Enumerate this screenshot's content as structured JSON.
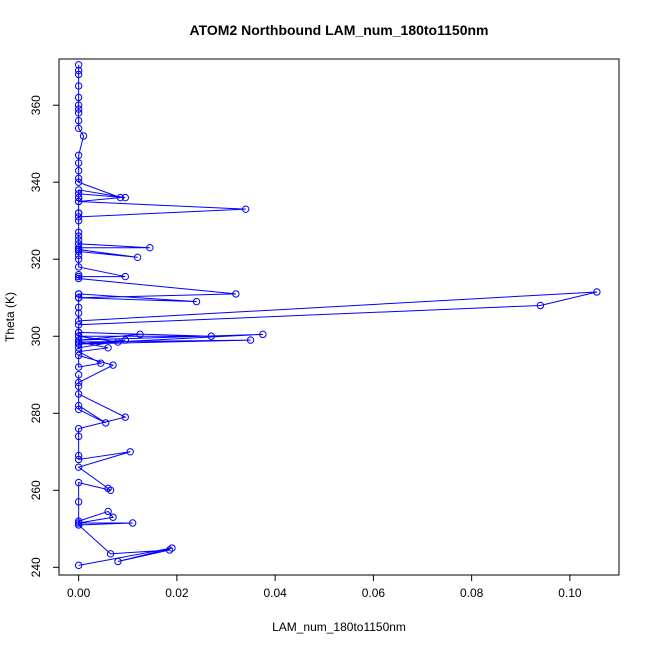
{
  "chart_data": {
    "type": "line",
    "title": "ATOM2 Northbound LAM_num_180to1150nm",
    "xlabel": "LAM_num_180to1150nm",
    "ylabel": "Theta (K)",
    "xlim": [
      -0.004,
      0.11
    ],
    "ylim": [
      238,
      372
    ],
    "xticks": [
      0.0,
      0.02,
      0.04,
      0.06,
      0.08,
      0.1
    ],
    "xtick_labels": [
      "0.00",
      "0.02",
      "0.04",
      "0.06",
      "0.08",
      "0.10"
    ],
    "yticks": [
      240,
      260,
      280,
      300,
      320,
      340,
      360
    ],
    "ytick_labels": [
      "240",
      "260",
      "280",
      "300",
      "320",
      "340",
      "360"
    ],
    "grid": false,
    "legend": "none",
    "series_color": "#0000ff",
    "marker": "open-circle",
    "series": [
      {
        "x": [
          0.0,
          0.019,
          0.008,
          0.0185,
          0.0065,
          0.0,
          0.011,
          0.0,
          0.007,
          0.006,
          0.0,
          0.0,
          0.0,
          0.0,
          0.0065,
          0.006,
          0.0,
          0.0105,
          0.0,
          0.0,
          0.0,
          0.0,
          0.0095,
          0.0,
          0.0,
          0.0055,
          0.0,
          0.0,
          0.0,
          0.0,
          0.007,
          0.0,
          0.0,
          0.0045,
          0.0,
          0.006,
          0.0,
          0.035,
          0.0,
          0.008,
          0.0,
          0.027,
          0.0,
          0.0125,
          0.0,
          0.0375,
          0.0,
          0.0095,
          0.0,
          0.0,
          0.0,
          0.0,
          0.094,
          0.1055,
          0.0,
          0.0,
          0.0,
          0.0,
          0.024,
          0.0,
          0.0,
          0.0,
          0.0,
          0.032,
          0.0,
          0.0,
          0.0,
          0.0095,
          0.0,
          0.0,
          0.0,
          0.012,
          0.0,
          0.0,
          0.0,
          0.0,
          0.0,
          0.0145,
          0.0,
          0.0,
          0.0,
          0.0,
          0.0,
          0.0,
          0.034,
          0.0,
          0.0,
          0.0,
          0.0,
          0.0095,
          0.0,
          0.0,
          0.0,
          0.0085,
          0.0,
          0.0,
          0.0,
          0.0,
          0.0,
          0.001,
          0.0,
          0.0,
          0.0,
          0.0,
          0.0,
          0.0,
          0.0,
          0.0,
          0.0,
          0.0
        ],
        "y": [
          240.5,
          245,
          241.5,
          244.5,
          243.5,
          251,
          251.5,
          251.5,
          253,
          254.5,
          252,
          251,
          257,
          262,
          260,
          260.5,
          266,
          270,
          268,
          269,
          274,
          276,
          279,
          285,
          281,
          277.5,
          282,
          287,
          290,
          288,
          292.5,
          295,
          292,
          293,
          296,
          297,
          298.5,
          299,
          298,
          298.5,
          300,
          300,
          301,
          300.5,
          299,
          300.5,
          298,
          299,
          297,
          300,
          301,
          303,
          308,
          311.5,
          304,
          306,
          307.5,
          310,
          309,
          311,
          310,
          311,
          310,
          311,
          315,
          316,
          315.5,
          315.5,
          318,
          320,
          322,
          320.5,
          322.5,
          321,
          325,
          322.5,
          324,
          323,
          323,
          326,
          327,
          330,
          332,
          331,
          333,
          335,
          332,
          336,
          337,
          336,
          338,
          336,
          335,
          336,
          340,
          341,
          343,
          345,
          347,
          352,
          354,
          356,
          358,
          359,
          360,
          362,
          365,
          368,
          369,
          370.5
        ]
      }
    ]
  }
}
